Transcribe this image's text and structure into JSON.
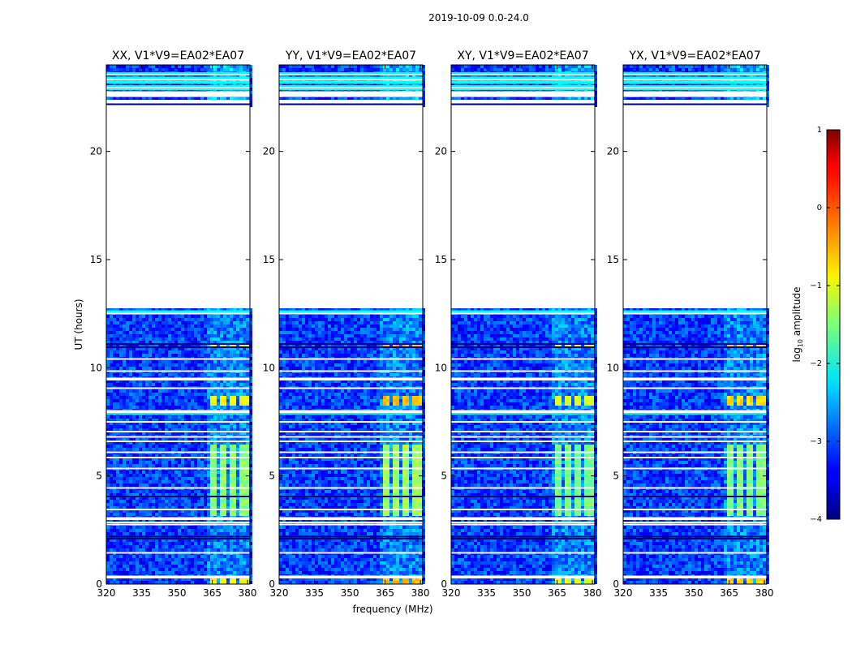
{
  "figure_title": "2019-10-09 0.0-24.0",
  "chart_data": {
    "type": "heatmap",
    "title": "2019-10-09 0.0-24.0",
    "xlabel": "frequency (MHz)",
    "ylabel": "UT (hours)",
    "xlim": [
      320,
      381
    ],
    "ylim": [
      0,
      24
    ],
    "xticks": [
      320,
      335,
      350,
      365,
      380
    ],
    "yticks": [
      0,
      5,
      10,
      15,
      20
    ],
    "colorbar": {
      "label": "log10 amplitude",
      "label_base": "log",
      "label_sub": "10",
      "label_rest": " amplitude",
      "range": [
        -4,
        1
      ],
      "ticks": [
        1,
        0,
        -1,
        -2,
        -3,
        -4
      ],
      "tick_labels": [
        "1",
        "0",
        "−1",
        "−2",
        "−3",
        "−4"
      ]
    },
    "panels": [
      {
        "title": "XX, V1*V9=EA02*EA07",
        "pol": "XX",
        "active_level": -1.45,
        "burst_level": -0.9,
        "bottom_level": -0.95
      },
      {
        "title": "YY, V1*V9=EA02*EA07",
        "pol": "YY",
        "active_level": -1.35,
        "burst_level": -0.55,
        "bottom_level": -0.35
      },
      {
        "title": "XY, V1*V9=EA02*EA07",
        "pol": "XY",
        "active_level": -1.55,
        "burst_level": -1.0,
        "bottom_level": -1.1
      },
      {
        "title": "YX, V1*V9=EA02*EA07",
        "pol": "YX",
        "active_level": -1.5,
        "burst_level": -0.7,
        "bottom_level": -0.8
      }
    ],
    "background_level": -3.1,
    "blank_interval_ut": [
      12.8,
      22.0
    ],
    "flagged_rows_ut": [
      0.3,
      0.35,
      1.45,
      2.75,
      2.85,
      3.0,
      3.05,
      3.45,
      4.45,
      5.35,
      5.85,
      6.1,
      6.6,
      6.8,
      7.05,
      7.5,
      7.95,
      8.0,
      9.05,
      9.45,
      9.5,
      9.85,
      10.4,
      12.5,
      22.05,
      22.1,
      22.25,
      22.3,
      22.35,
      22.55,
      22.6,
      22.65,
      22.7,
      22.75,
      22.95,
      23.3,
      23.55
    ],
    "dark_rows_ut": [
      2.1,
      2.2,
      4.05,
      10.95,
      11.1,
      22.15,
      22.2
    ],
    "cyan_rows_ut": [
      7.9,
      12.6,
      22.9,
      23.0,
      23.2,
      23.4,
      23.6
    ],
    "active_band_mhz": [
      [
        363.5,
        367.5
      ],
      [
        368,
        371.5
      ],
      [
        372,
        375.5
      ],
      [
        376.5,
        380.5
      ]
    ],
    "active_ut_intervals": [
      [
        3.2,
        6.4
      ]
    ],
    "burst_ut_intervals": [
      [
        0.05,
        0.3
      ],
      [
        8.2,
        8.7
      ],
      [
        10.95,
        11.05
      ]
    ]
  }
}
